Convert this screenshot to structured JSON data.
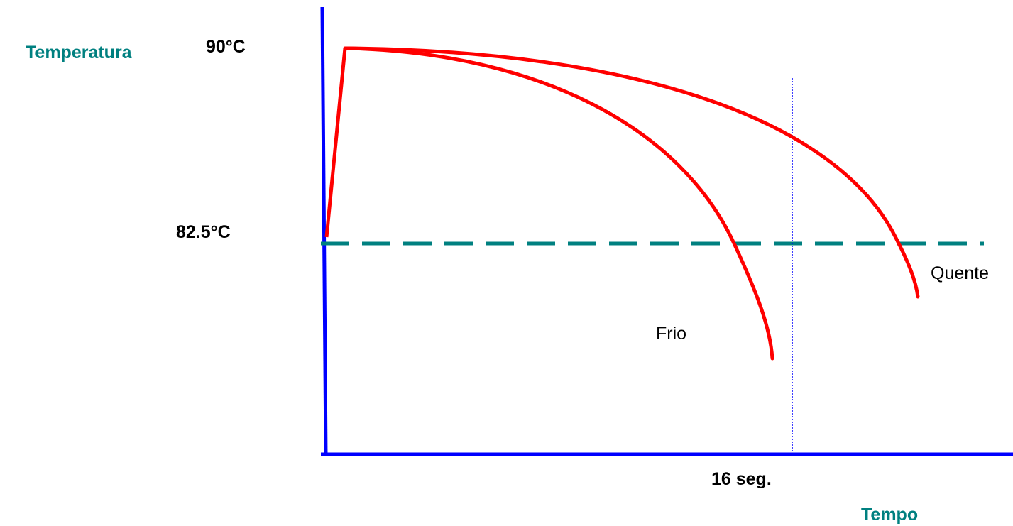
{
  "y_axis_title": "Temperatura",
  "x_axis_title": "Tempo",
  "labels": {
    "temp_high": "90°C",
    "temp_threshold": "82.5°C",
    "time_marker": "16 seg.",
    "curve_cold": "Frio",
    "curve_hot": "Quente"
  },
  "colors": {
    "axis": "#0000ff",
    "curve": "#ff0000",
    "threshold_line": "#008080",
    "time_marker_line": "#0000ff",
    "axis_title": "#008080",
    "text": "#000000"
  }
}
